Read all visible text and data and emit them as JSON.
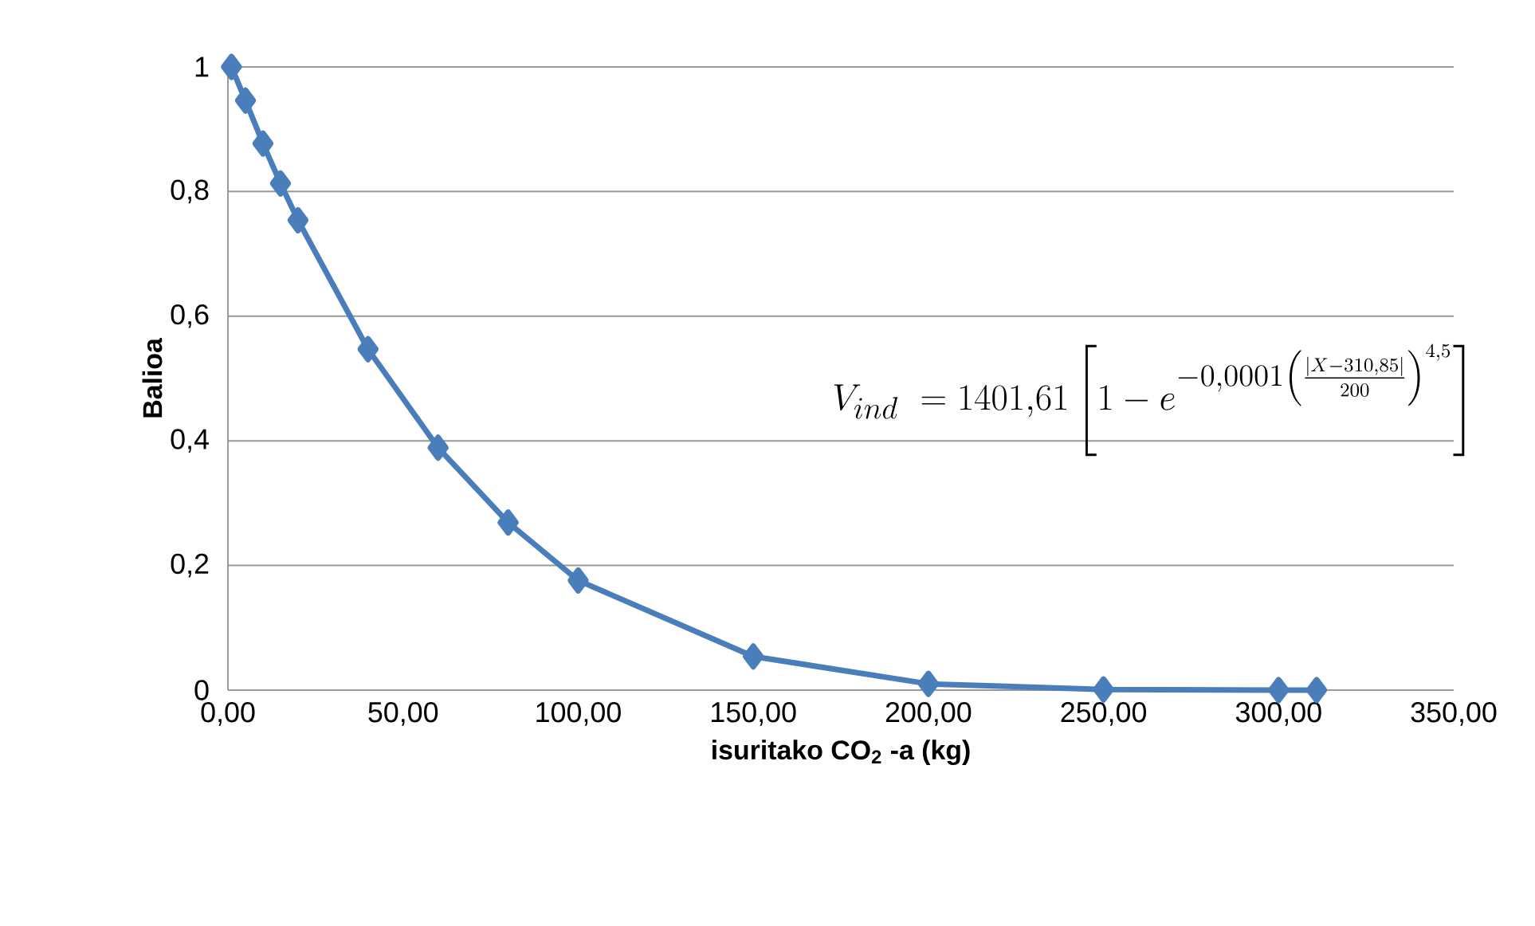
{
  "chart_data": {
    "type": "line",
    "xlabel": "isuritako CO$_{2}$ -a (kg)",
    "ylabel": "Balioa",
    "x": [
      1,
      5,
      10,
      15,
      20,
      40,
      60,
      80,
      100,
      150,
      200,
      250,
      300,
      310.85
    ],
    "series": [
      {
        "color": "#4a7ebb",
        "values": [
          1,
          0.946,
          0.877,
          0.813,
          0.754,
          0.547,
          0.389,
          0.269,
          0.176,
          0.054,
          0.01,
          0.001,
          0,
          0
        ]
      }
    ],
    "xlim": [
      0,
      350
    ],
    "xticks": [
      {
        "value": 0,
        "label": "0,00"
      },
      {
        "value": 50,
        "label": "50,00"
      },
      {
        "value": 100,
        "label": "100,00"
      },
      {
        "value": 150,
        "label": "150,00"
      },
      {
        "value": 200,
        "label": "200,00"
      },
      {
        "value": 250,
        "label": "250,00"
      },
      {
        "value": 300,
        "label": "300,00"
      },
      {
        "value": 350,
        "label": "350,00"
      }
    ],
    "ylim": [
      0,
      1
    ],
    "yticks": [
      0,
      {
        "value": 0.2,
        "label": "0,2"
      },
      {
        "value": 0.4,
        "label": "0,4"
      },
      {
        "value": 0.6,
        "label": "0,6"
      },
      {
        "value": 0.8,
        "label": "0,8"
      },
      1
    ],
    "grid": "y",
    "marker": "diamond",
    "line_style": "solid",
    "annotations": [
      "V_{ind}\\ = 1401{,}61\\left[1-e^{-0{,}0001\\left(\\frac{|X-310{,}85|}{200}\\right)^{4{,}5}}\\right]"
    ]
  }
}
